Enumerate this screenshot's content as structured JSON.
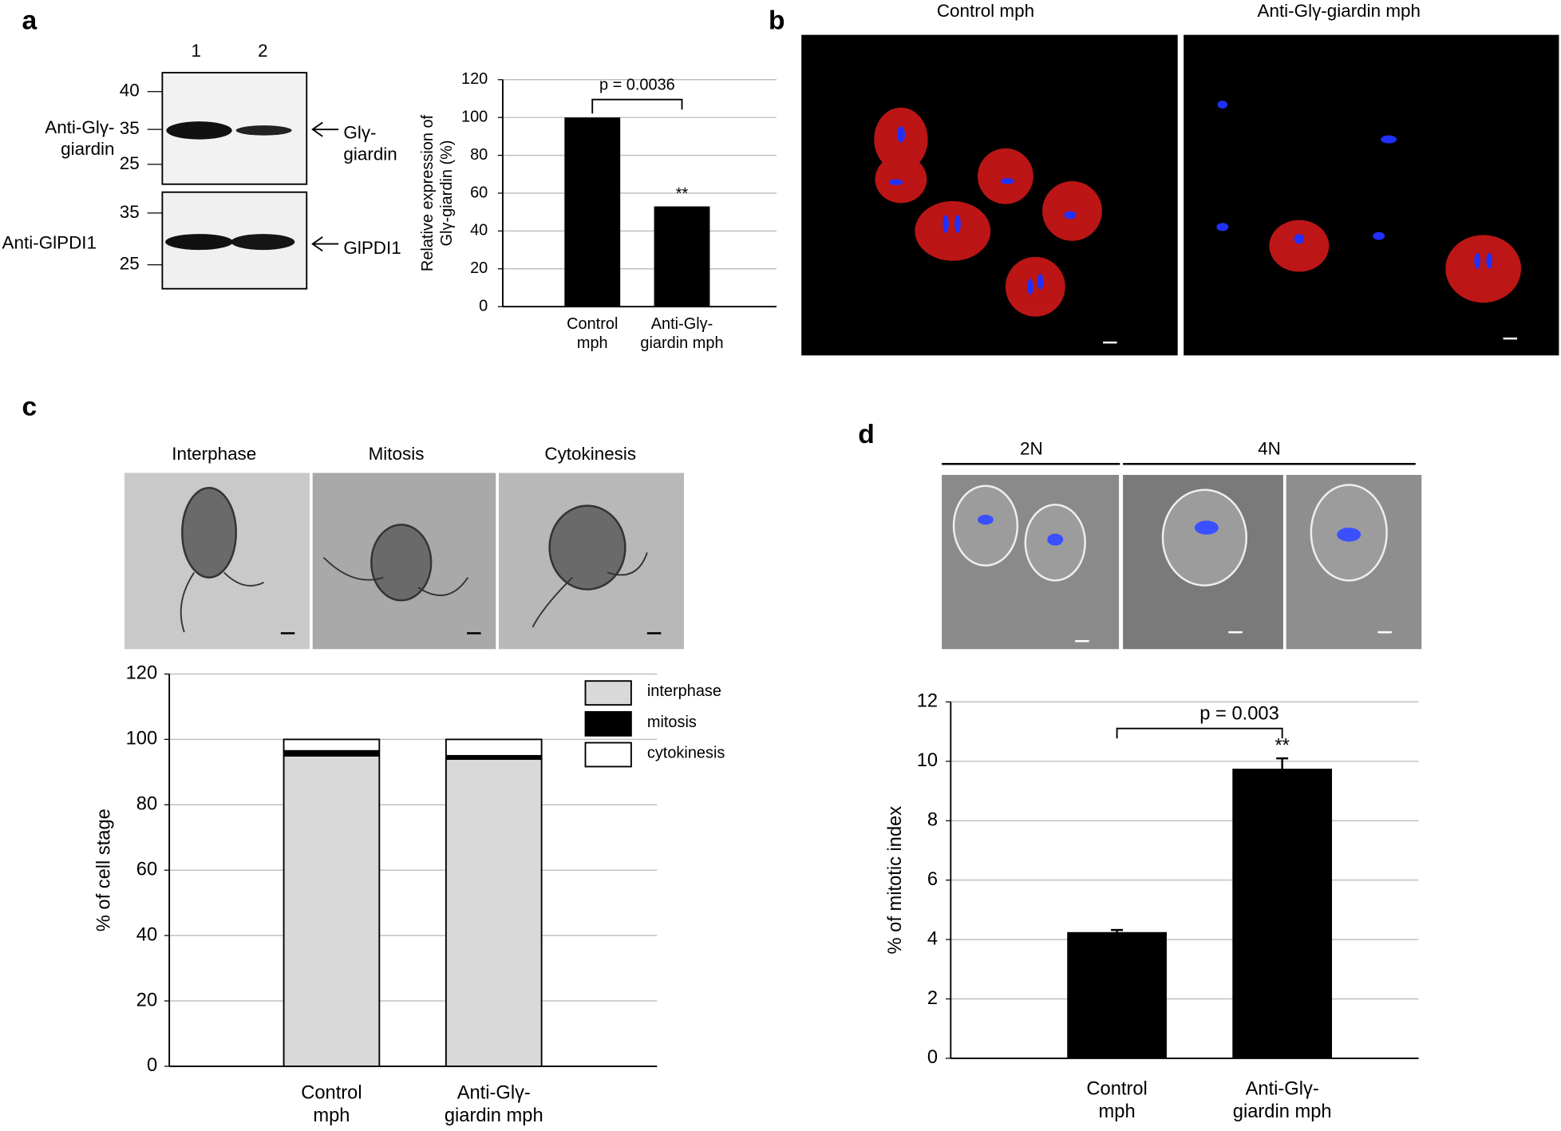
{
  "panel_labels": [
    "a",
    "b",
    "c",
    "d"
  ],
  "blot": {
    "lanes": [
      "1",
      "2"
    ],
    "top": {
      "antibody": "Anti-Glγ-\ngiardin",
      "markers": [
        40,
        35,
        25
      ],
      "band": "Glγ-\ngiardin"
    },
    "bottom": {
      "antibody": "Anti-GlPDI1",
      "markers": [
        35,
        25
      ],
      "band": "GlPDI1"
    }
  },
  "fluorescence": {
    "titles": [
      "Control mph",
      "Anti-Glγ-giardin mph"
    ]
  },
  "micrographs_c": {
    "titles": [
      "Interphase",
      "Mitosis",
      "Cytokinesis"
    ]
  },
  "micrographs_d": {
    "titles": [
      "2N",
      "4N"
    ]
  },
  "chart_data": [
    {
      "type": "bar",
      "ylabel": "Relative expression of\nGlγ-giardin (%)",
      "categories": [
        "Control\nmph",
        "Anti-Glγ-\ngiardin mph"
      ],
      "values": [
        100,
        53
      ],
      "color": "#000000",
      "ylim": [
        0,
        120
      ],
      "yticks": [
        0,
        20,
        40,
        60,
        80,
        100,
        120
      ],
      "grid": true,
      "annotation": "p = 0.0036",
      "significance": "**"
    },
    {
      "type": "stacked_bar",
      "ylabel": "% of cell stage",
      "categories": [
        "Control\nmph",
        "Anti-Glγ-\ngiardin mph"
      ],
      "series": [
        {
          "name": "interphase",
          "color": "#d9d9d9",
          "values": [
            95,
            94
          ]
        },
        {
          "name": "mitosis",
          "color": "#000000",
          "values": [
            1.5,
            1
          ]
        },
        {
          "name": "cytokinesis",
          "color": "#ffffff",
          "values": [
            3.5,
            5
          ]
        }
      ],
      "ylim": [
        0,
        120
      ],
      "yticks": [
        0,
        20,
        40,
        60,
        80,
        100,
        120
      ],
      "grid": true,
      "legend": "upper right"
    },
    {
      "type": "bar",
      "ylabel": "% of mitotic index",
      "categories": [
        "Control\nmph",
        "Anti-Glγ-\ngiardin mph"
      ],
      "values": [
        4.25,
        9.75
      ],
      "errors": [
        0.07,
        0.35
      ],
      "color": "#000000",
      "ylim": [
        0,
        12
      ],
      "yticks": [
        0,
        2,
        4,
        6,
        8,
        10,
        12
      ],
      "grid": true,
      "annotation": "p = 0.003",
      "significance": "**"
    }
  ]
}
